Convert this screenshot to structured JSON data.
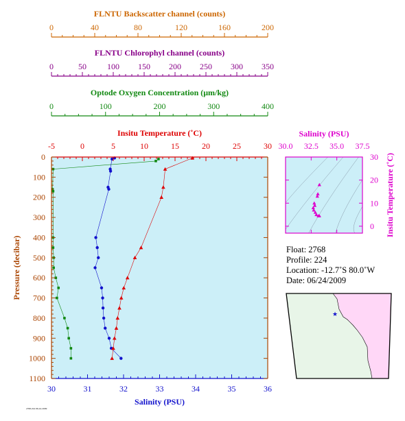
{
  "colors": {
    "backscatter": "#cc6600",
    "chlorophyll": "#880088",
    "oxygen": "#118811",
    "temperature": "#dd0000",
    "salinity": "#1111cc",
    "pressure": "#aa4400",
    "ts_axis": "#dd00cc",
    "panel_bg": "#cceff8",
    "land": "#ffd7f7",
    "map_sea": "#e8f5e8"
  },
  "info": {
    "float_label": "Float:  2768",
    "profile_label": "Profile:  224",
    "location_label": "Location:  -12.7˚S  80.0˚W",
    "date_label": "Date:  06/24/2009"
  },
  "chart_data": [
    {
      "type": "axis",
      "title": "FLNTU Backscatter channel (counts)",
      "ticks": [
        0,
        40,
        80,
        120,
        160,
        200
      ],
      "range": [
        0,
        200
      ]
    },
    {
      "type": "axis",
      "title": "FLNTU Chlorophyl channel (counts)",
      "ticks": [
        0,
        50,
        100,
        150,
        200,
        250,
        300,
        350
      ],
      "range": [
        0,
        350
      ]
    },
    {
      "type": "line",
      "title": "Optode Oxygen Concentration (μm/kg)",
      "ticks": [
        0,
        100,
        200,
        300,
        400
      ],
      "range": [
        0,
        400
      ],
      "y": [
        10,
        20,
        60,
        160,
        170,
        400,
        450,
        500,
        550,
        600,
        650,
        700,
        800,
        850,
        900,
        950,
        1000
      ],
      "values": [
        198,
        193,
        3,
        2,
        3,
        3,
        3,
        4,
        4,
        8,
        13,
        10,
        24,
        30,
        32,
        36,
        36
      ]
    },
    {
      "type": "line",
      "title": "Insitu Temperature (˚C)",
      "ticks": [
        -5,
        0,
        5,
        10,
        15,
        20,
        25,
        30
      ],
      "range": [
        -5,
        30
      ],
      "y": [
        5,
        60,
        150,
        200,
        450,
        500,
        600,
        650,
        700,
        750,
        800,
        850,
        900,
        950,
        1000
      ],
      "values": [
        17.8,
        13.4,
        13.1,
        12.8,
        9.5,
        8.5,
        7.3,
        6.7,
        6.3,
        6.0,
        5.7,
        5.5,
        5.2,
        5.0,
        4.8
      ]
    },
    {
      "type": "line",
      "title": "Salinity (PSU)",
      "ticks": [
        30,
        31,
        32,
        33,
        34,
        35,
        36
      ],
      "range": [
        30,
        36
      ],
      "y": [
        5,
        10,
        60,
        70,
        150,
        160,
        400,
        450,
        500,
        550,
        650,
        700,
        750,
        800,
        850,
        900,
        950,
        1000
      ],
      "values": [
        31.75,
        31.68,
        31.63,
        31.64,
        31.57,
        31.59,
        31.23,
        31.27,
        31.3,
        31.21,
        31.39,
        31.42,
        31.43,
        31.45,
        31.49,
        31.6,
        31.66,
        31.93
      ]
    },
    {
      "type": "axis",
      "title": "Pressure (decibar)",
      "ticks": [
        0,
        100,
        200,
        300,
        400,
        500,
        600,
        700,
        800,
        900,
        1000,
        1100
      ],
      "range": [
        0,
        1100
      ]
    },
    {
      "type": "scatter",
      "title": "Salinity (PSU)",
      "xlabel": "Salinity (PSU)",
      "ylabel": "Insitu Temperature (˚C)",
      "xticks": [
        30.0,
        32.5,
        35.0,
        37.5
      ],
      "xtick_labels": [
        "30.0",
        "32.5",
        "35.0",
        "37.5"
      ],
      "yticks": [
        0,
        10,
        20,
        30
      ],
      "xlim": [
        30,
        37.5
      ],
      "ylim": [
        -3,
        30
      ],
      "x": [
        33.3,
        33.15,
        33.1,
        32.8,
        32.85,
        32.7,
        32.75,
        32.9,
        33.0,
        33.2,
        33.3
      ],
      "y": [
        18,
        14,
        13,
        10,
        9,
        8,
        7,
        6,
        5,
        4.5,
        4.5
      ]
    }
  ]
}
